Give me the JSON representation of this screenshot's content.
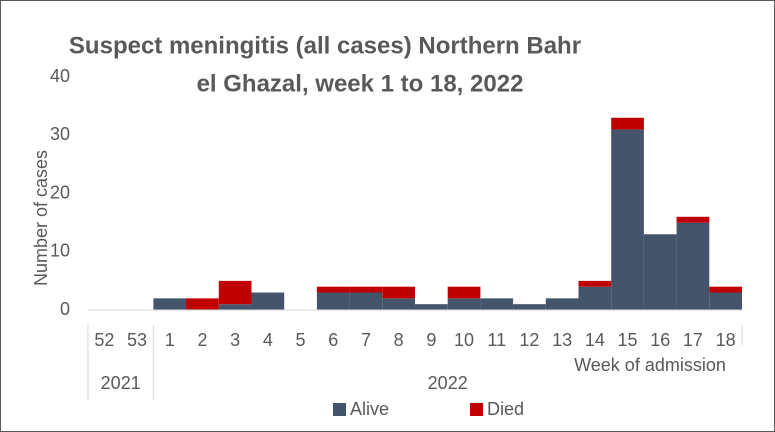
{
  "chart_data": {
    "type": "stacked_bar",
    "title": [
      "Suspect meningitis (all cases) Northern Bahr",
      "el Ghazal, week 1 to 18, 2022"
    ],
    "y_label": "Number of cases",
    "x_label": "Week of admission",
    "groups": [
      {
        "label": "2021",
        "categories": [
          "52",
          "53"
        ]
      },
      {
        "label": "2022",
        "categories": [
          "1",
          "2",
          "3",
          "4",
          "5",
          "6",
          "7",
          "8",
          "9",
          "10",
          "11",
          "12",
          "13",
          "14",
          "15",
          "16",
          "17",
          "18"
        ]
      }
    ],
    "series": [
      {
        "name": "Alive",
        "color": "#44546a",
        "values": [
          0,
          0,
          2,
          0,
          1,
          3,
          0,
          3,
          3,
          2,
          1,
          2,
          2,
          1,
          2,
          4,
          31,
          13,
          15,
          3
        ]
      },
      {
        "name": "Died",
        "color": "#c00000",
        "values": [
          0,
          0,
          0,
          2,
          4,
          0,
          0,
          1,
          1,
          2,
          0,
          2,
          0,
          0,
          0,
          1,
          2,
          0,
          1,
          1
        ]
      }
    ],
    "ylim": [
      0,
      40
    ],
    "yticks": [
      0,
      10,
      20,
      30,
      40
    ],
    "grid": false,
    "legend": "bottom"
  }
}
